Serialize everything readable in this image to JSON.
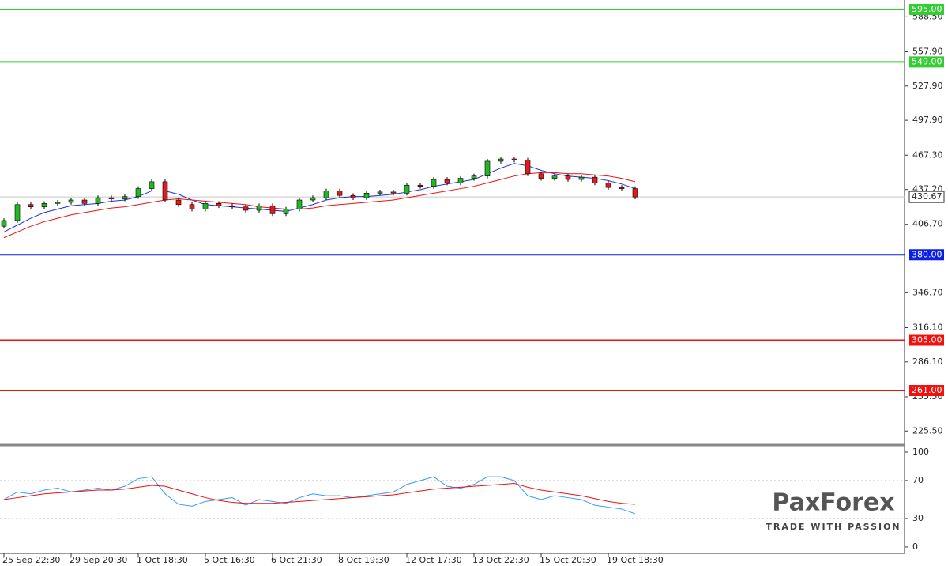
{
  "chart_data": [
    {
      "type": "candlestick",
      "categories": [
        "25 Sep 22:30",
        null,
        null,
        null,
        null,
        "29 Sep 20:30",
        null,
        null,
        null,
        null,
        "1 Oct 18:30",
        null,
        null,
        null,
        null,
        "5 Oct 16:30",
        null,
        null,
        null,
        null,
        "6 Oct 21:30",
        null,
        null,
        null,
        null,
        "8 Oct 19:30",
        null,
        null,
        null,
        null,
        "12 Oct 17:30",
        null,
        null,
        null,
        null,
        "13 Oct 22:30",
        null,
        null,
        null,
        null,
        "15 Oct 20:30",
        null,
        null,
        null,
        null,
        "19 Oct 18:30",
        null,
        null
      ],
      "open": [
        405,
        410,
        424,
        422,
        425,
        426,
        428,
        425,
        430,
        429,
        431,
        438,
        444,
        428,
        424,
        420,
        425,
        423,
        422,
        419,
        423,
        416,
        420,
        428,
        430,
        436,
        432,
        430,
        434,
        435,
        434,
        441,
        440,
        446,
        443,
        447,
        449,
        462,
        464,
        463,
        451,
        447,
        449,
        446,
        448,
        443,
        439,
        438
      ],
      "high": [
        412,
        426,
        426,
        427,
        428,
        430,
        430,
        432,
        432,
        433,
        440,
        446,
        446,
        430,
        426,
        427,
        427,
        425,
        424,
        425,
        425,
        422,
        430,
        432,
        438,
        438,
        434,
        436,
        437,
        437,
        443,
        443,
        448,
        448,
        449,
        451,
        464,
        466,
        466,
        465,
        453,
        451,
        451,
        450,
        450,
        445,
        441,
        440
      ],
      "low": [
        403,
        408,
        420,
        420,
        423,
        424,
        423,
        423,
        427,
        427,
        429,
        436,
        426,
        422,
        418,
        418,
        421,
        420,
        417,
        417,
        414,
        414,
        418,
        426,
        428,
        430,
        428,
        428,
        432,
        432,
        432,
        438,
        438,
        441,
        441,
        445,
        447,
        460,
        461,
        449,
        445,
        445,
        444,
        444,
        441,
        437,
        436,
        428.67
      ],
      "close": [
        410,
        424,
        422,
        425,
        426,
        428,
        425,
        430,
        429,
        431,
        438,
        444,
        428,
        424,
        420,
        425,
        423,
        422,
        419,
        423,
        416,
        420,
        428,
        430,
        436,
        432,
        430,
        434,
        435,
        434,
        441,
        440,
        446,
        443,
        447,
        449,
        462,
        464,
        463,
        451,
        447,
        449,
        446,
        448,
        443,
        439,
        438,
        430.67
      ],
      "up_color": "#22b822",
      "down_color": "#e01b1b",
      "series": [
        {
          "color": "#1f2fe0",
          "values": [
            400,
            406,
            412,
            417,
            420,
            423,
            424,
            425,
            427,
            428,
            431,
            436,
            436,
            433,
            428,
            424,
            423,
            422,
            421,
            420,
            419,
            418,
            421,
            424,
            428,
            430,
            431,
            431,
            432,
            433,
            435,
            437,
            440,
            442,
            444,
            446,
            451,
            456,
            460,
            458,
            454,
            451,
            449,
            448,
            447,
            445,
            442,
            438
          ]
        },
        {
          "color": "#f01010",
          "values": [
            395,
            400,
            405,
            409,
            412,
            415,
            417,
            419,
            421,
            422,
            424,
            426,
            428,
            429,
            428,
            427,
            426,
            425,
            424,
            422,
            421,
            420,
            420,
            421,
            423,
            424,
            425,
            426,
            427,
            428,
            430,
            432,
            434,
            436,
            438,
            440,
            443,
            446,
            449,
            451,
            452,
            452,
            451,
            451,
            450,
            449,
            447,
            444
          ]
        }
      ],
      "levels": [
        {
          "value": 595,
          "label": "595.00",
          "color": "#33cc33"
        },
        {
          "value": 549,
          "label": "549.00",
          "color": "#33cc33"
        },
        {
          "value": 380,
          "label": "380.00",
          "color": "#0a1ee6"
        },
        {
          "value": 305,
          "label": "305.00",
          "color": "#f01010"
        },
        {
          "value": 261,
          "label": "261.00",
          "color": "#f01010"
        }
      ],
      "current": {
        "value": 430.67,
        "label": "430.67"
      },
      "ylim": [
        213.9,
        603.3
      ],
      "yticks": [
        {
          "value": 588.5,
          "label": "588.50"
        },
        {
          "value": 557.9,
          "label": "557.90"
        },
        {
          "value": 527.9,
          "label": "527.90"
        },
        {
          "value": 497.9,
          "label": "497.90"
        },
        {
          "value": 467.3,
          "label": "467.30"
        },
        {
          "value": 437.2,
          "label": "437.20"
        },
        {
          "value": 406.7,
          "label": "406.70"
        },
        {
          "value": 346.7,
          "label": "346.70"
        },
        {
          "value": 316.1,
          "label": "316.10"
        },
        {
          "value": 286.1,
          "label": "286.10"
        },
        {
          "value": 255.5,
          "label": "255.50"
        },
        {
          "value": 225.5,
          "label": "225.50"
        }
      ]
    },
    {
      "type": "line",
      "series": [
        {
          "color": "#3399ff",
          "values": [
            50,
            58,
            56,
            60,
            62,
            58,
            60,
            62,
            60,
            64,
            72,
            74,
            56,
            45,
            43,
            48,
            50,
            52,
            44,
            50,
            48,
            46,
            52,
            56,
            54,
            54,
            52,
            54,
            56,
            58,
            66,
            70,
            74,
            64,
            62,
            66,
            74,
            74,
            70,
            54,
            50,
            54,
            52,
            50,
            44,
            42,
            40,
            35
          ]
        },
        {
          "color": "#f01010",
          "values": [
            50,
            52,
            54,
            56,
            57,
            58,
            59,
            60,
            60,
            61,
            63,
            65,
            64,
            60,
            56,
            52,
            49,
            47,
            46,
            46,
            46,
            47,
            48,
            49,
            50,
            51,
            52,
            53,
            54,
            55,
            57,
            59,
            61,
            62,
            63,
            64,
            65,
            66,
            67,
            63,
            60,
            58,
            56,
            54,
            51,
            48,
            46,
            45
          ]
        }
      ],
      "reference_lines": [
        30,
        70
      ],
      "ylim": [
        -6.7,
        105.8
      ],
      "yticks": [
        0,
        30,
        70,
        100
      ]
    }
  ],
  "brand": {
    "name": "PaxForex",
    "tagline": "TRADE WITH PASSION"
  }
}
